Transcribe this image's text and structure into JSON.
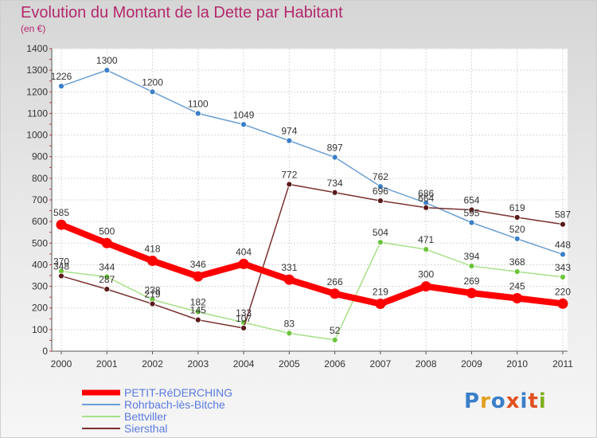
{
  "chart_data": {
    "type": "line",
    "title": "Evolution du Montant de la Dette par Habitant",
    "subtitle": "(en €)",
    "xlabel": "",
    "ylabel": "",
    "x": [
      "2000",
      "2001",
      "2002",
      "2003",
      "2004",
      "2005",
      "2006",
      "2007",
      "2008",
      "2009",
      "2010",
      "2011"
    ],
    "ylim": [
      0,
      1400
    ],
    "yticks": [
      0,
      100,
      200,
      300,
      400,
      500,
      600,
      700,
      800,
      900,
      1000,
      1100,
      1200,
      1300,
      1400
    ],
    "grid": true,
    "legend": "bottom-left",
    "series": [
      {
        "name": "PETIT-RéDERCHING",
        "color": "#ff0000",
        "values": [
          585,
          500,
          418,
          346,
          404,
          331,
          266,
          219,
          300,
          269,
          245,
          220
        ]
      },
      {
        "name": "Rohrbach-lès-Bitche",
        "color": "#6a9fd4",
        "values": [
          1226,
          1300,
          1200,
          1100,
          1049,
          974,
          897,
          762,
          686,
          595,
          520,
          448
        ]
      },
      {
        "name": "Bettviller",
        "color": "#90d870",
        "values": [
          370,
          344,
          238,
          182,
          133,
          83,
          52,
          504,
          471,
          394,
          368,
          343
        ]
      },
      {
        "name": "Siersthal",
        "color": "#6e2a2a",
        "values": [
          348,
          287,
          219,
          145,
          107,
          772,
          734,
          696,
          664,
          654,
          619,
          587
        ]
      }
    ]
  },
  "logo": {
    "text": "Proxiti",
    "colors": [
      "#3a7fc8",
      "#e0a020",
      "#3a7fc8",
      "#e05020",
      "#3a7fc8",
      "#e05020",
      "#80b020"
    ]
  }
}
